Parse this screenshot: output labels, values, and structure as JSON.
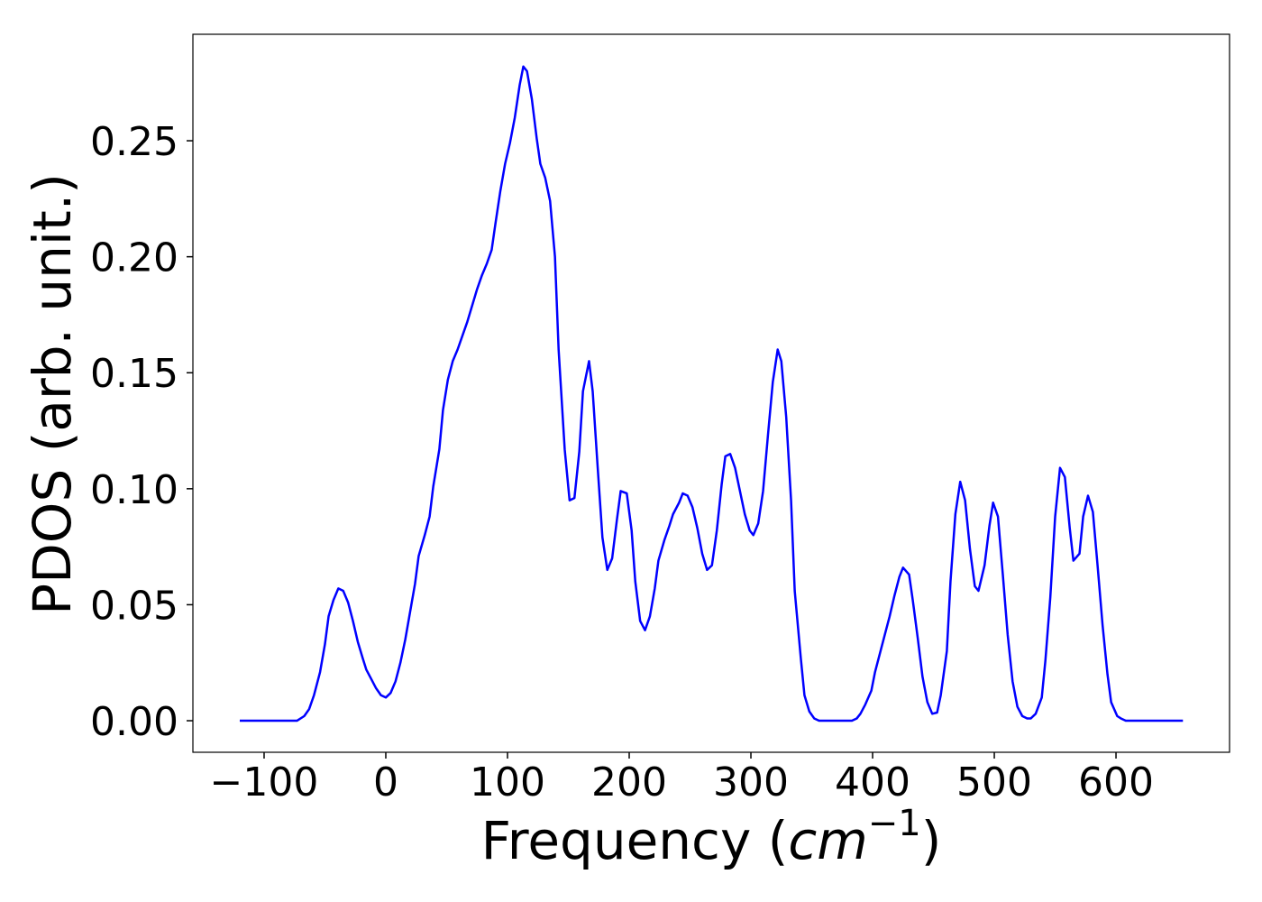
{
  "chart_data": {
    "type": "line",
    "x_label": [
      "Frequency (",
      "cm",
      "−1",
      ")"
    ],
    "y_label": "PDOS (arb. unit.)",
    "color": "#0000ff",
    "x": [
      -120,
      -73,
      -67,
      -63,
      -59,
      -54,
      -50,
      -47,
      -43,
      -39,
      -35,
      -31,
      -27,
      -23,
      -19,
      -16,
      -12,
      -8,
      -4,
      0,
      4,
      8,
      12,
      16,
      20,
      24,
      27,
      32,
      36,
      39,
      44,
      47,
      51,
      55,
      59,
      63,
      67,
      71,
      75,
      79,
      83,
      87,
      90,
      94,
      98,
      102,
      106,
      110,
      113,
      116,
      120,
      124,
      127,
      131,
      135,
      139,
      142,
      147,
      151,
      155,
      159,
      162,
      167,
      170,
      174,
      178,
      182,
      186,
      190,
      193,
      198,
      202,
      205,
      209,
      213,
      217,
      221,
      224,
      229,
      233,
      236,
      241,
      244,
      248,
      252,
      256,
      260,
      264,
      268,
      272,
      276,
      279,
      283,
      287,
      291,
      295,
      299,
      302,
      306,
      310,
      314,
      318,
      322,
      325,
      329,
      333,
      336,
      341,
      344,
      348,
      352,
      356,
      383,
      387,
      390,
      394,
      399,
      402,
      406,
      410,
      414,
      418,
      422,
      425,
      430,
      433,
      437,
      441,
      445,
      449,
      453,
      456,
      461,
      464,
      468,
      472,
      476,
      480,
      484,
      487,
      492,
      496,
      499,
      503,
      507,
      511,
      515,
      519,
      523,
      527,
      530,
      534,
      539,
      542,
      546,
      550,
      554,
      558,
      562,
      565,
      570,
      573,
      577,
      581,
      585,
      589,
      593,
      596,
      601,
      604,
      608,
      655
    ],
    "values": [
      0,
      0,
      0.002,
      0.005,
      0.011,
      0.021,
      0.033,
      0.045,
      0.052,
      0.057,
      0.056,
      0.051,
      0.043,
      0.034,
      0.027,
      0.022,
      0.018,
      0.014,
      0.011,
      0.01,
      0.012,
      0.017,
      0.025,
      0.035,
      0.047,
      0.059,
      0.071,
      0.08,
      0.088,
      0.101,
      0.117,
      0.134,
      0.147,
      0.155,
      0.16,
      0.166,
      0.172,
      0.179,
      0.186,
      0.192,
      0.197,
      0.203,
      0.214,
      0.228,
      0.24,
      0.249,
      0.26,
      0.274,
      0.282,
      0.28,
      0.268,
      0.251,
      0.24,
      0.234,
      0.224,
      0.2,
      0.16,
      0.117,
      0.095,
      0.096,
      0.116,
      0.142,
      0.155,
      0.142,
      0.11,
      0.079,
      0.065,
      0.07,
      0.087,
      0.099,
      0.098,
      0.082,
      0.06,
      0.043,
      0.039,
      0.045,
      0.057,
      0.069,
      0.078,
      0.084,
      0.089,
      0.094,
      0.098,
      0.097,
      0.092,
      0.083,
      0.072,
      0.065,
      0.067,
      0.082,
      0.102,
      0.114,
      0.115,
      0.109,
      0.099,
      0.089,
      0.082,
      0.08,
      0.085,
      0.099,
      0.123,
      0.146,
      0.16,
      0.155,
      0.131,
      0.095,
      0.056,
      0.027,
      0.011,
      0.004,
      0.001,
      0,
      0,
      0.001,
      0.003,
      0.007,
      0.013,
      0.021,
      0.029,
      0.037,
      0.045,
      0.054,
      0.062,
      0.066,
      0.063,
      0.052,
      0.036,
      0.019,
      0.008,
      0.003,
      0.0035,
      0.011,
      0.03,
      0.06,
      0.089,
      0.103,
      0.095,
      0.074,
      0.058,
      0.056,
      0.067,
      0.084,
      0.094,
      0.088,
      0.063,
      0.037,
      0.017,
      0.006,
      0.002,
      0.001,
      0.001,
      0.003,
      0.01,
      0.026,
      0.053,
      0.088,
      0.109,
      0.105,
      0.083,
      0.069,
      0.072,
      0.088,
      0.097,
      0.09,
      0.066,
      0.041,
      0.02,
      0.008,
      0.002,
      0.001,
      0,
      0
    ],
    "xlim": [
      -158.5,
      693.3
    ],
    "ylim": [
      -0.0136,
      0.2959
    ],
    "xticks": [
      {
        "value": -100,
        "label": "−100"
      },
      0,
      100,
      200,
      300,
      400,
      500,
      600
    ],
    "yticks": [
      {
        "value": 0,
        "label": "0.00"
      },
      {
        "value": 0.05,
        "label": "0.05"
      },
      {
        "value": 0.1,
        "label": "0.10"
      },
      {
        "value": 0.15,
        "label": "0.15"
      },
      {
        "value": 0.2,
        "label": "0.20"
      },
      {
        "value": 0.25,
        "label": "0.25"
      }
    ]
  }
}
